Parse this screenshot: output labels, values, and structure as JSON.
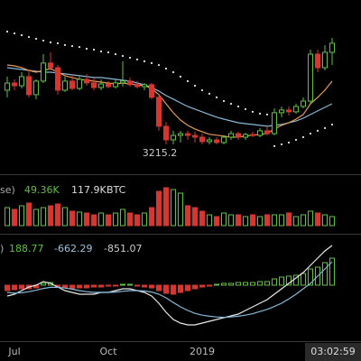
{
  "chart_data": [
    {
      "type": "candlestick",
      "categories": [
        null,
        "Jul",
        null,
        null,
        null,
        null,
        null,
        null,
        null,
        null,
        null,
        null,
        null,
        null,
        "Oct",
        null,
        null,
        null,
        null,
        null,
        null,
        null,
        null,
        null,
        null,
        null,
        null,
        "2019",
        null,
        null,
        null,
        null,
        null,
        null,
        null,
        null,
        null,
        null,
        null,
        null,
        null,
        null,
        null,
        null,
        null,
        null
      ],
      "open": [
        6250,
        6650,
        6500,
        7010,
        6000,
        6760,
        7770,
        7510,
        6250,
        6760,
        6350,
        6860,
        6660,
        6400,
        6600,
        6450,
        6660,
        6760,
        6560,
        6450,
        6560,
        5850,
        4230,
        3470,
        3720,
        3820,
        3720,
        3620,
        3370,
        3470,
        3320,
        3620,
        3820,
        3620,
        3770,
        3720,
        3980,
        3820,
        4990,
        5140,
        5040,
        5340,
        5640,
        8270,
        7510,
        8370
      ],
      "high": [
        7010,
        6860,
        7260,
        7360,
        6860,
        8270,
        8370,
        7660,
        7010,
        7160,
        7010,
        7160,
        6960,
        6860,
        6760,
        6860,
        7870,
        6960,
        6760,
        6660,
        6660,
        6000,
        4480,
        3980,
        3980,
        3980,
        3930,
        3820,
        3620,
        3620,
        3720,
        3980,
        3930,
        3870,
        3930,
        4130,
        4230,
        5240,
        5340,
        5340,
        5490,
        5850,
        8520,
        8520,
        8770,
        9180
      ],
      "low": [
        5850,
        6250,
        6350,
        5850,
        5750,
        6650,
        7360,
        6000,
        6150,
        6250,
        6250,
        6500,
        6250,
        6250,
        6350,
        6350,
        6450,
        6450,
        6350,
        6250,
        5750,
        3980,
        3215.2,
        3220,
        3320,
        3470,
        3320,
        3220,
        3220,
        3220,
        3220,
        3470,
        3470,
        3470,
        3620,
        3620,
        3720,
        3720,
        4740,
        4840,
        4940,
        5240,
        5490,
        7260,
        7360,
        7660
      ],
      "close": [
        6650,
        6500,
        7010,
        6000,
        6760,
        7770,
        7510,
        6250,
        6760,
        6350,
        6860,
        6660,
        6400,
        6600,
        6450,
        6660,
        6760,
        6560,
        6450,
        6560,
        5850,
        4230,
        3470,
        3720,
        3820,
        3720,
        3620,
        3370,
        3470,
        3320,
        3620,
        3820,
        3620,
        3770,
        3720,
        3980,
        3820,
        4990,
        5140,
        5040,
        5340,
        5640,
        8270,
        7510,
        8370,
        8880
      ],
      "up_color": "#5fc23e",
      "down_color": "#d8352f",
      "ylim": [
        1700,
        11300
      ],
      "overlays": [
        {
          "type": "line",
          "color": "#86b9d8",
          "values": [
            7510,
            7460,
            7410,
            7360,
            7310,
            7260,
            7260,
            7210,
            7160,
            7110,
            7060,
            7010,
            6960,
            6960,
            6910,
            6860,
            6810,
            6760,
            6650,
            6550,
            6400,
            6200,
            5950,
            5750,
            5540,
            5340,
            5190,
            5040,
            4890,
            4740,
            4630,
            4530,
            4430,
            4380,
            4330,
            4280,
            4230,
            4280,
            4330,
            4430,
            4530,
            4680,
            4890,
            5090,
            5290,
            5490
          ]
        },
        {
          "type": "line",
          "color": "#e39a55",
          "values": [
            7660,
            7610,
            7510,
            7360,
            7260,
            7360,
            7460,
            7260,
            7060,
            6960,
            6860,
            6810,
            6760,
            6700,
            6650,
            6600,
            6650,
            6600,
            6550,
            6500,
            6350,
            6000,
            5490,
            4990,
            4580,
            4280,
            4080,
            3930,
            3780,
            3730,
            3680,
            3620,
            3620,
            3680,
            3730,
            3780,
            3820,
            4080,
            4280,
            4430,
            4630,
            4890,
            5490,
            5850,
            6250,
            6760
          ]
        },
        {
          "type": "dots",
          "color": "#e8e8e8",
          "values": [
            9530,
            9430,
            9330,
            9230,
            9130,
            9030,
            8930,
            8880,
            8780,
            8720,
            8670,
            8570,
            8520,
            8420,
            8370,
            8270,
            8170,
            8070,
            7970,
            7870,
            7770,
            7660,
            7460,
            7260,
            7010,
            6760,
            6500,
            6250,
            6050,
            5850,
            5640,
            5490,
            5340,
            5190,
            5040,
            4940,
            4890,
            3120,
            3220,
            3320,
            3470,
            3620,
            3820,
            3980,
            4130,
            4330
          ]
        }
      ],
      "countdown": "03:02:59"
    },
    {
      "type": "bar",
      "values": [
        100000,
        90000,
        110000,
        125000,
        90000,
        100000,
        110000,
        120000,
        100000,
        80000,
        75000,
        70000,
        60000,
        70000,
        60000,
        70000,
        90000,
        70000,
        60000,
        70000,
        100000,
        190000,
        210000,
        200000,
        180000,
        110000,
        100000,
        80000,
        60000,
        50000,
        70000,
        60000,
        60000,
        50000,
        60000,
        50000,
        60000,
        60000,
        60000,
        70000,
        50000,
        60000,
        80000,
        70000,
        60000,
        50000
      ],
      "ylim": [
        0,
        250000
      ],
      "legend": {
        "prefix": "se)",
        "values": [
          {
            "value": 49360,
            "label": "49.36K",
            "color": "#5fc23e"
          },
          {
            "value": 117900,
            "label": "117.9K",
            "color": "#dddddd"
          }
        ],
        "unit": "BTC"
      }
    },
    {
      "type": "macd",
      "histogram": [
        -150,
        -125,
        -100,
        -100,
        -75,
        50,
        75,
        -50,
        -75,
        -100,
        -75,
        -75,
        -50,
        -50,
        -25,
        -25,
        25,
        25,
        -25,
        -50,
        -75,
        -150,
        -225,
        -250,
        -200,
        -150,
        -100,
        -50,
        -25,
        25,
        50,
        50,
        75,
        75,
        75,
        100,
        100,
        175,
        225,
        250,
        275,
        325,
        450,
        500,
        625,
        750
      ],
      "macd": [
        -300,
        -250,
        -150,
        -50,
        0,
        100,
        50,
        -50,
        -150,
        -200,
        -250,
        -250,
        -250,
        -200,
        -200,
        -150,
        -100,
        -100,
        -150,
        -200,
        -300,
        -500,
        -750,
        -950,
        -1050,
        -1100,
        -1100,
        -1050,
        -1000,
        -950,
        -900,
        -850,
        -800,
        -700,
        -600,
        -500,
        -400,
        -250,
        -100,
        50,
        200,
        350,
        550,
        750,
        950,
        1100
      ],
      "signal": [
        -200,
        -220,
        -210,
        -180,
        -140,
        -90,
        -60,
        -60,
        -80,
        -110,
        -150,
        -180,
        -200,
        -200,
        -200,
        -190,
        -170,
        -150,
        -150,
        -160,
        -190,
        -250,
        -350,
        -480,
        -600,
        -700,
        -780,
        -830,
        -860,
        -880,
        -890,
        -880,
        -860,
        -830,
        -790,
        -730,
        -670,
        -590,
        -500,
        -380,
        -250,
        -100,
        50,
        250,
        450,
        650
      ],
      "macd_color": "#e8e8e8",
      "signal_color": "#86b9d8",
      "ylim": [
        -1500,
        1200
      ],
      "legend": {
        "prefix": ")",
        "values": [
          188.77,
          -662.29,
          -851.07
        ],
        "colors": [
          "#5fc23e",
          "#9cc3dc",
          "#cccccc"
        ]
      }
    }
  ]
}
